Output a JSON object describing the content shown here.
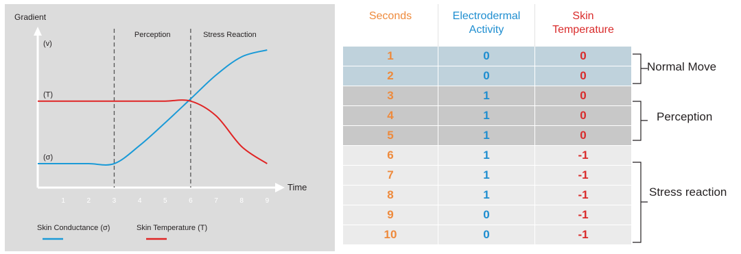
{
  "chart_data": {
    "type": "line",
    "ylabel": "Gradient",
    "xlabel": "Time",
    "x_ticks": [
      1,
      2,
      3,
      4,
      5,
      6,
      7,
      8,
      9
    ],
    "xlim": [
      0,
      9.7
    ],
    "y_levels": [
      {
        "label": "(v)",
        "level": 1.0
      },
      {
        "label": "(T)",
        "level": 0.55
      },
      {
        "label": "(σ)",
        "level": 0.0
      }
    ],
    "phase_lines": [
      3,
      6
    ],
    "phases": [
      "Perception",
      "Stress Reaction"
    ],
    "series": [
      {
        "name": "Skin Conductance (σ)",
        "color": "#1a9ad7",
        "points": [
          [
            0,
            0.0
          ],
          [
            1,
            0.0
          ],
          [
            2,
            0.0
          ],
          [
            3,
            0.0
          ],
          [
            4,
            0.16
          ],
          [
            5,
            0.36
          ],
          [
            6,
            0.57
          ],
          [
            7,
            0.78
          ],
          [
            8,
            0.94
          ],
          [
            9,
            1.0
          ]
        ]
      },
      {
        "name": "Skin Temperature (T)",
        "color": "#e02424",
        "points": [
          [
            0,
            0.55
          ],
          [
            1,
            0.55
          ],
          [
            2,
            0.55
          ],
          [
            3,
            0.55
          ],
          [
            4,
            0.55
          ],
          [
            5,
            0.55
          ],
          [
            6,
            0.55
          ],
          [
            7,
            0.42
          ],
          [
            8,
            0.15
          ],
          [
            9,
            0.0
          ]
        ]
      }
    ]
  },
  "table": {
    "headers": [
      {
        "line1": "Seconds",
        "line2": "",
        "color": "#ee8a3c"
      },
      {
        "line1": "Electrodermal",
        "line2": "Activity",
        "color": "#1f8ed0"
      },
      {
        "line1": "Skin",
        "line2": "Temperature",
        "color": "#d92b2b"
      }
    ],
    "rows": [
      {
        "seconds": "1",
        "eda": "0",
        "temp": "0"
      },
      {
        "seconds": "2",
        "eda": "0",
        "temp": "0"
      },
      {
        "seconds": "3",
        "eda": "1",
        "temp": "0"
      },
      {
        "seconds": "4",
        "eda": "1",
        "temp": "0"
      },
      {
        "seconds": "5",
        "eda": "1",
        "temp": "0"
      },
      {
        "seconds": "6",
        "eda": "1",
        "temp": "-1"
      },
      {
        "seconds": "7",
        "eda": "1",
        "temp": "-1"
      },
      {
        "seconds": "8",
        "eda": "1",
        "temp": "-1"
      },
      {
        "seconds": "9",
        "eda": "0",
        "temp": "-1"
      },
      {
        "seconds": "10",
        "eda": "0",
        "temp": "-1"
      }
    ],
    "groups": [
      {
        "label": "Normal Move",
        "from": 0,
        "to": 1,
        "color": "#bfd2dc"
      },
      {
        "label": "Perception",
        "from": 2,
        "to": 4,
        "color": "#c8c8c8"
      },
      {
        "label": "Stress reaction",
        "from": 5,
        "to": 9,
        "color": "#ebebeb"
      }
    ],
    "colors": {
      "seconds": "#ee8a3c",
      "eda": "#1f8ed0",
      "temp": "#d92b2b"
    }
  }
}
